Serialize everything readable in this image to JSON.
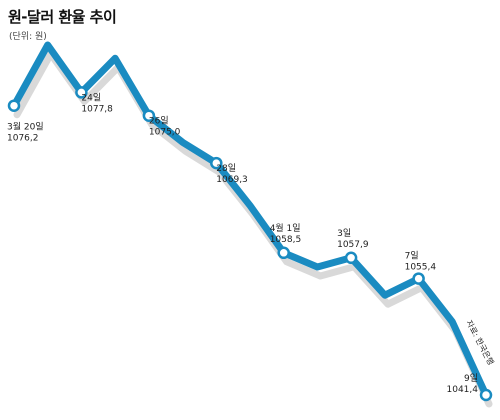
{
  "chart_data": {
    "type": "line",
    "title": "원-달러 환율 추이",
    "subtitle": "(단위: 원)",
    "source": "자료: 한국은행",
    "x": [
      "3월 20일",
      "",
      "24일",
      "",
      "26일",
      "",
      "28일",
      "",
      "4월 1일",
      "",
      "3일",
      "",
      "7일",
      "",
      "9일"
    ],
    "series": [
      {
        "values": [
          1076.2,
          1083.5,
          1077.8,
          1081.9,
          1075.0,
          1071.8,
          1069.3,
          1064.2,
          1058.5,
          1056.8,
          1057.9,
          1053.4,
          1055.4,
          1050.2,
          1041.4
        ]
      }
    ],
    "labels": [
      {
        "index": 0,
        "date": "3월 20일",
        "value": "1076,2"
      },
      {
        "index": 2,
        "date": "24일",
        "value": "1077,8"
      },
      {
        "index": 4,
        "date": "26일",
        "value": "1075,0"
      },
      {
        "index": 6,
        "date": "28일",
        "value": "1069,3"
      },
      {
        "index": 8,
        "date": "4월 1일",
        "value": "1058,5"
      },
      {
        "index": 10,
        "date": "3일",
        "value": "1057,9"
      },
      {
        "index": 12,
        "date": "7일",
        "value": "1055,4"
      },
      {
        "index": 14,
        "date": "9일",
        "value": "1041,4"
      }
    ],
    "ylim": [
      1041.4,
      1083.5
    ],
    "grid": false,
    "colors": {
      "line": "#1a8bc1",
      "shadow": "#d9d9d9",
      "marker_fill": "#ffffff",
      "marker_stroke": "#1a8bc1"
    }
  }
}
